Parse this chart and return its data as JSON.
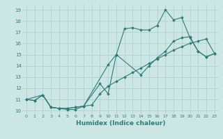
{
  "xlabel": "Humidex (Indice chaleur)",
  "xlim": [
    -0.5,
    23.5
  ],
  "ylim": [
    9.7,
    19.5
  ],
  "xticks": [
    0,
    1,
    2,
    3,
    4,
    5,
    6,
    7,
    8,
    9,
    10,
    11,
    12,
    13,
    14,
    15,
    16,
    17,
    18,
    19,
    20,
    21,
    22,
    23
  ],
  "yticks": [
    10,
    11,
    12,
    13,
    14,
    15,
    16,
    17,
    18,
    19
  ],
  "line_color": "#2d7d72",
  "bg_color": "#cce5e5",
  "grid_color": "#aacccc",
  "line1_x": [
    0,
    1,
    2,
    3,
    4,
    5,
    6,
    7,
    9,
    10,
    11,
    12,
    13,
    14,
    15,
    16,
    17,
    18,
    19,
    20,
    21,
    22,
    23
  ],
  "line1_y": [
    11.0,
    10.9,
    11.4,
    10.3,
    10.2,
    10.1,
    10.1,
    10.4,
    12.4,
    11.5,
    15.0,
    17.3,
    17.4,
    17.2,
    17.2,
    17.6,
    19.0,
    18.1,
    18.3,
    16.5,
    15.3,
    14.8,
    15.1
  ],
  "line2_x": [
    0,
    2,
    3,
    4,
    5,
    6,
    7,
    10,
    11,
    14,
    15,
    16,
    17,
    18,
    19,
    20,
    21,
    22,
    23
  ],
  "line2_y": [
    11.0,
    11.4,
    10.3,
    10.2,
    10.2,
    10.3,
    10.4,
    14.1,
    15.0,
    13.2,
    14.0,
    14.7,
    15.3,
    16.2,
    16.5,
    16.6,
    15.3,
    14.8,
    15.1
  ],
  "line3_x": [
    0,
    1,
    2,
    3,
    4,
    5,
    6,
    7,
    8,
    9,
    10,
    11,
    12,
    13,
    14,
    15,
    16,
    17,
    18,
    19,
    20,
    21,
    22,
    23
  ],
  "line3_y": [
    11.0,
    10.9,
    11.4,
    10.3,
    10.2,
    10.2,
    10.3,
    10.4,
    10.5,
    11.5,
    12.2,
    12.6,
    13.0,
    13.4,
    13.8,
    14.2,
    14.6,
    15.0,
    15.4,
    15.7,
    16.0,
    16.2,
    16.4,
    15.1
  ]
}
